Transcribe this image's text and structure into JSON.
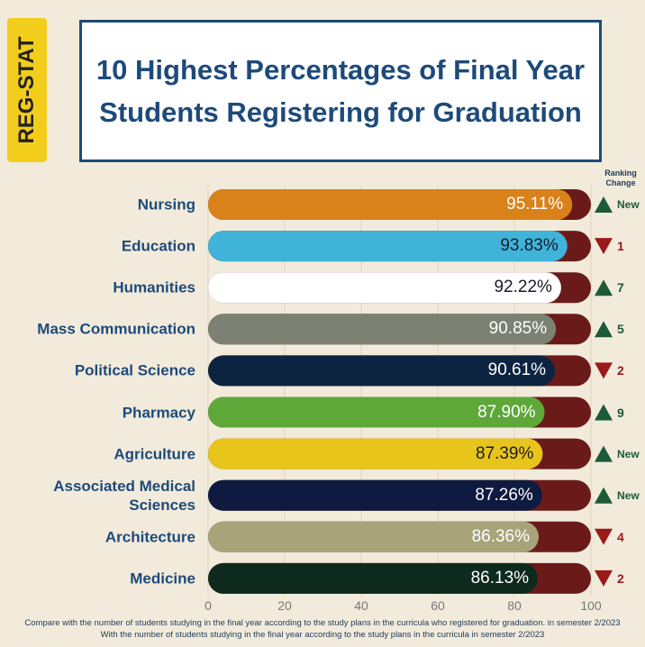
{
  "chart_data": {
    "type": "bar",
    "orientation": "horizontal",
    "side_label": "REG-STAT",
    "title": "10 Highest Percentages of Final Year Students Registering for Graduation",
    "ranking_header": "Ranking Change",
    "categories": [
      "Nursing",
      "Education",
      "Humanities",
      "Mass Communication",
      "Political Science",
      "Pharmacy",
      "Agriculture",
      "Associated Medical Sciences",
      "Architecture",
      "Medicine"
    ],
    "values": [
      95.11,
      93.83,
      92.22,
      90.85,
      90.61,
      87.9,
      87.39,
      87.26,
      86.36,
      86.13
    ],
    "value_labels": [
      "95.11%",
      "93.83%",
      "92.22%",
      "90.85%",
      "90.61%",
      "87.90%",
      "87.39%",
      "87.26%",
      "86.36%",
      "86.13%"
    ],
    "colors": [
      "#d9821a",
      "#3fb4d8",
      "#ffffff",
      "#7b8274",
      "#0d2440",
      "#5ea83a",
      "#e8c51a",
      "#0e1a40",
      "#a8a47a",
      "#0e2a1e"
    ],
    "label_colors": [
      "#ffffff",
      "#1a1a2e",
      "#1a1a2e",
      "#ffffff",
      "#ffffff",
      "#ffffff",
      "#1a1a2e",
      "#ffffff",
      "#ffffff",
      "#ffffff"
    ],
    "track_color": "#6b1a1a",
    "ranking_change": [
      {
        "direction": "up",
        "label": "New"
      },
      {
        "direction": "down",
        "label": "1"
      },
      {
        "direction": "up",
        "label": "7"
      },
      {
        "direction": "up",
        "label": "5"
      },
      {
        "direction": "down",
        "label": "2"
      },
      {
        "direction": "up",
        "label": "9"
      },
      {
        "direction": "up",
        "label": "New"
      },
      {
        "direction": "up",
        "label": "New"
      },
      {
        "direction": "down",
        "label": "4"
      },
      {
        "direction": "down",
        "label": "2"
      }
    ],
    "xlim": [
      0,
      100
    ],
    "xticks": [
      0,
      20,
      40,
      60,
      80,
      100
    ],
    "grid": true,
    "footnotes": [
      "Compare with the number of students studying in the final year according to the study plans in the curricula who registered for graduation. in semester 2/2023",
      "With the number of students studying in the final year according to the study plans in the curricula in semester 2/2023"
    ]
  }
}
